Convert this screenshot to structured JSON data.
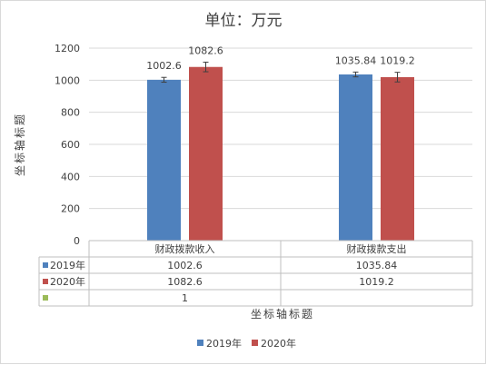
{
  "chart_data": {
    "type": "bar",
    "title": "单位：万元",
    "ylabel": "坐标轴标题",
    "xlabel": "坐标轴标题",
    "categories": [
      "财政拨款收入",
      "财政拨款支出"
    ],
    "series": [
      {
        "name": "2019年",
        "color": "#4f81bd",
        "values": [
          1002.6,
          1035.84
        ],
        "labels": [
          "1002.6",
          "1035.84"
        ],
        "error": [
          15,
          15
        ]
      },
      {
        "name": "2020年",
        "color": "#c0504d",
        "values": [
          1082.6,
          1019.2
        ],
        "labels": [
          "1082.6",
          "1019.2"
        ],
        "error": [
          30,
          30
        ]
      }
    ],
    "extra_row": {
      "color": "#9bbb59",
      "values": [
        "1",
        ""
      ]
    },
    "ylim": [
      0,
      1200
    ],
    "yticks": [
      "0",
      "200",
      "400",
      "600",
      "800",
      "1000",
      "1200"
    ],
    "grid": true,
    "error_bars": true,
    "data_table": true,
    "legend_position": "bottom"
  }
}
